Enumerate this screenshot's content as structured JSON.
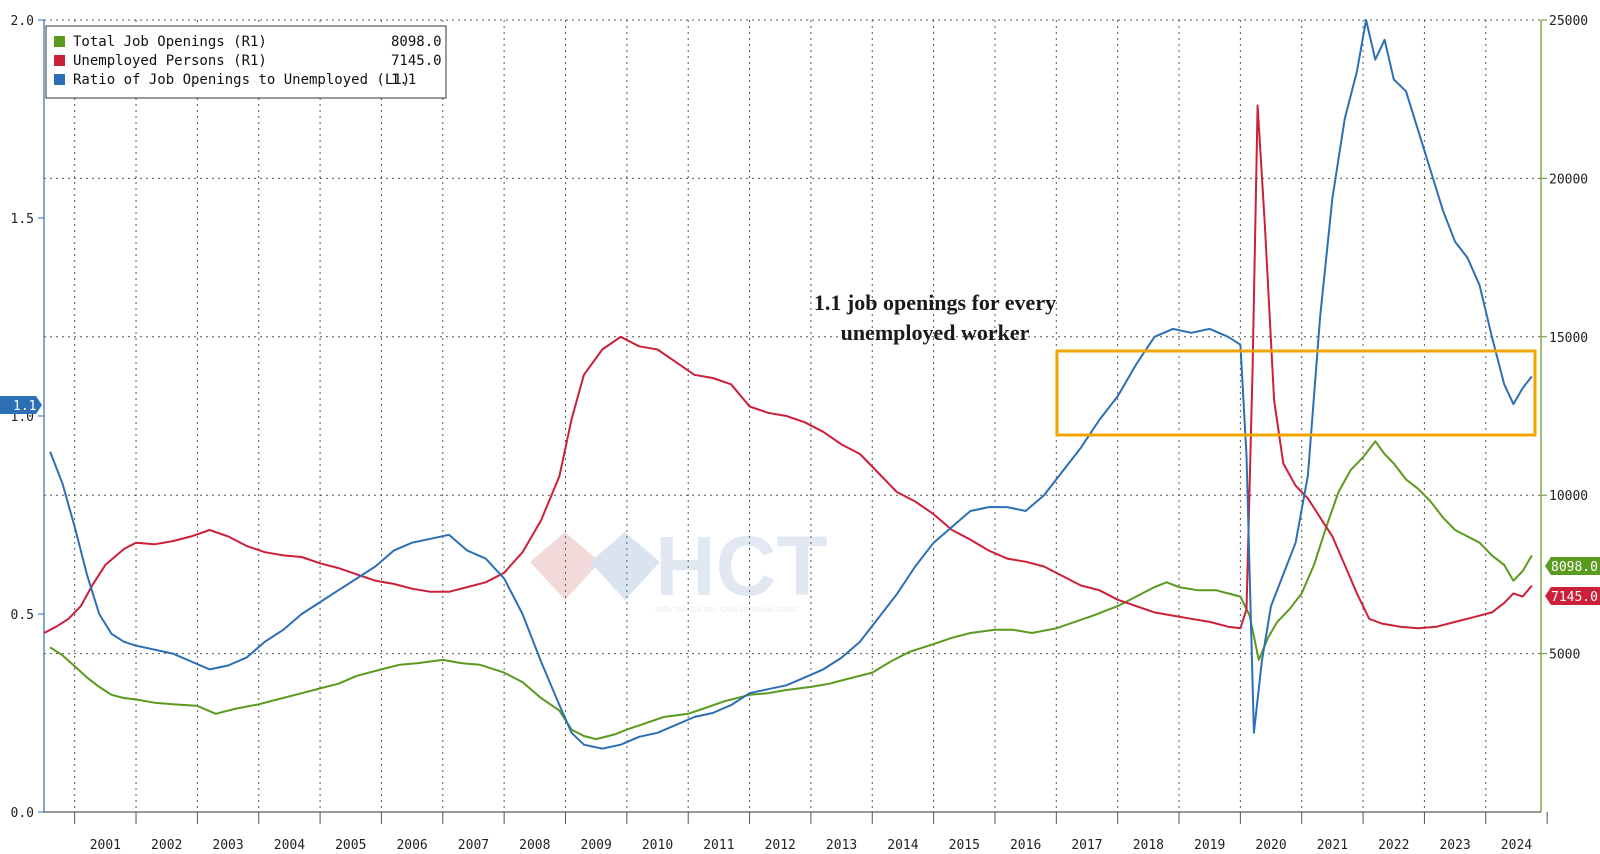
{
  "chart_data": {
    "type": "line",
    "title": "",
    "legend": {
      "position": "top-left",
      "entries": [
        {
          "label": "Total Job Openings (R1)",
          "value": "8098.0",
          "color": "#5a9a1e"
        },
        {
          "label": "Unemployed Persons (R1)",
          "value": "7145.0",
          "color": "#cc1f3a"
        },
        {
          "label": "Ratio of Job Openings to Unemployed (L1)",
          "value": "1.1",
          "color": "#2c6fb5"
        }
      ]
    },
    "left_axis": {
      "range": [
        0.0,
        2.0
      ],
      "ticks": [
        "0.0",
        "0.5",
        "1.0",
        "1.5",
        "2.0"
      ]
    },
    "right_axis": {
      "range": [
        0,
        25000
      ],
      "ticks": [
        "5000",
        "10000",
        "15000",
        "20000",
        "25000"
      ]
    },
    "x_axis": {
      "range": [
        2000.5,
        2024.9
      ],
      "ticks": [
        "2001",
        "2002",
        "2003",
        "2004",
        "2005",
        "2006",
        "2007",
        "2008",
        "2009",
        "2010",
        "2011",
        "2012",
        "2013",
        "2014",
        "2015",
        "2016",
        "2017",
        "2018",
        "2019",
        "2020",
        "2021",
        "2022",
        "2023",
        "2024"
      ]
    },
    "grid": true,
    "last_value_tags": {
      "ratio": "1.1",
      "openings": "8098.0",
      "unemployed": "7145.0"
    },
    "annotation": {
      "lines": [
        "1.1 job openings for every",
        "unemployed worker"
      ],
      "box_color": "#f0a500"
    },
    "series": [
      {
        "name": "Total Job Openings (R1)",
        "axis": "right",
        "color": "#5a9a1e",
        "points": [
          [
            2000.6,
            5200
          ],
          [
            2000.8,
            4950
          ],
          [
            2001.0,
            4600
          ],
          [
            2001.2,
            4250
          ],
          [
            2001.4,
            3950
          ],
          [
            2001.6,
            3700
          ],
          [
            2001.8,
            3600
          ],
          [
            2002.0,
            3550
          ],
          [
            2002.3,
            3450
          ],
          [
            2002.6,
            3400
          ],
          [
            2003.0,
            3350
          ],
          [
            2003.3,
            3100
          ],
          [
            2003.6,
            3250
          ],
          [
            2004.0,
            3400
          ],
          [
            2004.3,
            3550
          ],
          [
            2004.6,
            3700
          ],
          [
            2005.0,
            3900
          ],
          [
            2005.3,
            4050
          ],
          [
            2005.6,
            4300
          ],
          [
            2006.0,
            4500
          ],
          [
            2006.3,
            4650
          ],
          [
            2006.6,
            4700
          ],
          [
            2007.0,
            4800
          ],
          [
            2007.3,
            4700
          ],
          [
            2007.6,
            4650
          ],
          [
            2008.0,
            4400
          ],
          [
            2008.3,
            4100
          ],
          [
            2008.6,
            3600
          ],
          [
            2008.9,
            3200
          ],
          [
            2009.1,
            2600
          ],
          [
            2009.3,
            2400
          ],
          [
            2009.5,
            2300
          ],
          [
            2009.8,
            2450
          ],
          [
            2010.0,
            2600
          ],
          [
            2010.3,
            2800
          ],
          [
            2010.6,
            3000
          ],
          [
            2011.0,
            3100
          ],
          [
            2011.3,
            3300
          ],
          [
            2011.6,
            3500
          ],
          [
            2012.0,
            3700
          ],
          [
            2012.3,
            3750
          ],
          [
            2012.6,
            3850
          ],
          [
            2013.0,
            3950
          ],
          [
            2013.3,
            4050
          ],
          [
            2013.6,
            4200
          ],
          [
            2014.0,
            4400
          ],
          [
            2014.3,
            4750
          ],
          [
            2014.6,
            5050
          ],
          [
            2015.0,
            5300
          ],
          [
            2015.3,
            5500
          ],
          [
            2015.6,
            5650
          ],
          [
            2016.0,
            5750
          ],
          [
            2016.3,
            5750
          ],
          [
            2016.6,
            5650
          ],
          [
            2017.0,
            5800
          ],
          [
            2017.3,
            6000
          ],
          [
            2017.6,
            6200
          ],
          [
            2018.0,
            6500
          ],
          [
            2018.3,
            6800
          ],
          [
            2018.6,
            7100
          ],
          [
            2018.8,
            7250
          ],
          [
            2019.0,
            7100
          ],
          [
            2019.3,
            7000
          ],
          [
            2019.6,
            7000
          ],
          [
            2019.8,
            6900
          ],
          [
            2020.0,
            6800
          ],
          [
            2020.15,
            6200
          ],
          [
            2020.3,
            4800
          ],
          [
            2020.45,
            5500
          ],
          [
            2020.6,
            6000
          ],
          [
            2020.8,
            6400
          ],
          [
            2021.0,
            6900
          ],
          [
            2021.2,
            7800
          ],
          [
            2021.4,
            9000
          ],
          [
            2021.6,
            10100
          ],
          [
            2021.8,
            10800
          ],
          [
            2022.0,
            11200
          ],
          [
            2022.2,
            11700
          ],
          [
            2022.35,
            11300
          ],
          [
            2022.5,
            11000
          ],
          [
            2022.7,
            10500
          ],
          [
            2022.9,
            10200
          ],
          [
            2023.1,
            9800
          ],
          [
            2023.3,
            9300
          ],
          [
            2023.5,
            8900
          ],
          [
            2023.7,
            8700
          ],
          [
            2023.9,
            8500
          ],
          [
            2024.1,
            8100
          ],
          [
            2024.3,
            7800
          ],
          [
            2024.45,
            7300
          ],
          [
            2024.6,
            7600
          ],
          [
            2024.75,
            8098
          ]
        ]
      },
      {
        "name": "Unemployed Persons (R1)",
        "axis": "right",
        "color": "#cc1f3a",
        "points": [
          [
            2000.5,
            5650
          ],
          [
            2000.7,
            5850
          ],
          [
            2000.9,
            6100
          ],
          [
            2001.1,
            6500
          ],
          [
            2001.3,
            7200
          ],
          [
            2001.5,
            7800
          ],
          [
            2001.8,
            8300
          ],
          [
            2002.0,
            8500
          ],
          [
            2002.3,
            8450
          ],
          [
            2002.6,
            8550
          ],
          [
            2002.9,
            8700
          ],
          [
            2003.2,
            8900
          ],
          [
            2003.5,
            8700
          ],
          [
            2003.8,
            8400
          ],
          [
            2004.1,
            8200
          ],
          [
            2004.4,
            8100
          ],
          [
            2004.7,
            8050
          ],
          [
            2005.0,
            7850
          ],
          [
            2005.3,
            7700
          ],
          [
            2005.6,
            7500
          ],
          [
            2005.9,
            7300
          ],
          [
            2006.2,
            7200
          ],
          [
            2006.5,
            7050
          ],
          [
            2006.8,
            6950
          ],
          [
            2007.1,
            6950
          ],
          [
            2007.4,
            7100
          ],
          [
            2007.7,
            7250
          ],
          [
            2008.0,
            7550
          ],
          [
            2008.3,
            8200
          ],
          [
            2008.6,
            9200
          ],
          [
            2008.9,
            10600
          ],
          [
            2009.1,
            12400
          ],
          [
            2009.3,
            13800
          ],
          [
            2009.6,
            14600
          ],
          [
            2009.9,
            15000
          ],
          [
            2010.2,
            14700
          ],
          [
            2010.5,
            14600
          ],
          [
            2010.8,
            14200
          ],
          [
            2011.1,
            13800
          ],
          [
            2011.4,
            13700
          ],
          [
            2011.7,
            13500
          ],
          [
            2012.0,
            12800
          ],
          [
            2012.3,
            12600
          ],
          [
            2012.6,
            12500
          ],
          [
            2012.9,
            12300
          ],
          [
            2013.2,
            12000
          ],
          [
            2013.5,
            11600
          ],
          [
            2013.8,
            11300
          ],
          [
            2014.1,
            10700
          ],
          [
            2014.4,
            10100
          ],
          [
            2014.7,
            9800
          ],
          [
            2015.0,
            9400
          ],
          [
            2015.3,
            8900
          ],
          [
            2015.6,
            8600
          ],
          [
            2015.9,
            8250
          ],
          [
            2016.2,
            8000
          ],
          [
            2016.5,
            7900
          ],
          [
            2016.8,
            7750
          ],
          [
            2017.1,
            7450
          ],
          [
            2017.4,
            7150
          ],
          [
            2017.7,
            7000
          ],
          [
            2018.0,
            6700
          ],
          [
            2018.3,
            6500
          ],
          [
            2018.6,
            6300
          ],
          [
            2018.9,
            6200
          ],
          [
            2019.2,
            6100
          ],
          [
            2019.5,
            6000
          ],
          [
            2019.8,
            5850
          ],
          [
            2020.0,
            5800
          ],
          [
            2020.1,
            6400
          ],
          [
            2020.2,
            14000
          ],
          [
            2020.28,
            22300
          ],
          [
            2020.4,
            18500
          ],
          [
            2020.55,
            13000
          ],
          [
            2020.7,
            11000
          ],
          [
            2020.9,
            10300
          ],
          [
            2021.1,
            9900
          ],
          [
            2021.3,
            9300
          ],
          [
            2021.5,
            8700
          ],
          [
            2021.7,
            7800
          ],
          [
            2021.9,
            6900
          ],
          [
            2022.1,
            6100
          ],
          [
            2022.3,
            5950
          ],
          [
            2022.6,
            5850
          ],
          [
            2022.9,
            5800
          ],
          [
            2023.2,
            5850
          ],
          [
            2023.5,
            6000
          ],
          [
            2023.8,
            6150
          ],
          [
            2024.1,
            6300
          ],
          [
            2024.3,
            6600
          ],
          [
            2024.45,
            6900
          ],
          [
            2024.6,
            6800
          ],
          [
            2024.75,
            7145
          ]
        ]
      },
      {
        "name": "Ratio of Job Openings to Unemployed (L1)",
        "axis": "left",
        "color": "#2c6fb5",
        "points": [
          [
            2000.6,
            0.91
          ],
          [
            2000.8,
            0.83
          ],
          [
            2001.0,
            0.72
          ],
          [
            2001.2,
            0.6
          ],
          [
            2001.4,
            0.5
          ],
          [
            2001.6,
            0.45
          ],
          [
            2001.8,
            0.43
          ],
          [
            2002.0,
            0.42
          ],
          [
            2002.3,
            0.41
          ],
          [
            2002.6,
            0.4
          ],
          [
            2002.9,
            0.38
          ],
          [
            2003.2,
            0.36
          ],
          [
            2003.5,
            0.37
          ],
          [
            2003.8,
            0.39
          ],
          [
            2004.1,
            0.43
          ],
          [
            2004.4,
            0.46
          ],
          [
            2004.7,
            0.5
          ],
          [
            2005.0,
            0.53
          ],
          [
            2005.3,
            0.56
          ],
          [
            2005.6,
            0.59
          ],
          [
            2005.9,
            0.62
          ],
          [
            2006.2,
            0.66
          ],
          [
            2006.5,
            0.68
          ],
          [
            2006.8,
            0.69
          ],
          [
            2007.1,
            0.7
          ],
          [
            2007.4,
            0.66
          ],
          [
            2007.7,
            0.64
          ],
          [
            2008.0,
            0.59
          ],
          [
            2008.3,
            0.5
          ],
          [
            2008.6,
            0.38
          ],
          [
            2008.9,
            0.27
          ],
          [
            2009.1,
            0.2
          ],
          [
            2009.3,
            0.17
          ],
          [
            2009.6,
            0.16
          ],
          [
            2009.9,
            0.17
          ],
          [
            2010.2,
            0.19
          ],
          [
            2010.5,
            0.2
          ],
          [
            2010.8,
            0.22
          ],
          [
            2011.1,
            0.24
          ],
          [
            2011.4,
            0.25
          ],
          [
            2011.7,
            0.27
          ],
          [
            2012.0,
            0.3
          ],
          [
            2012.3,
            0.31
          ],
          [
            2012.6,
            0.32
          ],
          [
            2012.9,
            0.34
          ],
          [
            2013.2,
            0.36
          ],
          [
            2013.5,
            0.39
          ],
          [
            2013.8,
            0.43
          ],
          [
            2014.1,
            0.49
          ],
          [
            2014.4,
            0.55
          ],
          [
            2014.7,
            0.62
          ],
          [
            2015.0,
            0.68
          ],
          [
            2015.3,
            0.72
          ],
          [
            2015.6,
            0.76
          ],
          [
            2015.9,
            0.77
          ],
          [
            2016.2,
            0.77
          ],
          [
            2016.5,
            0.76
          ],
          [
            2016.8,
            0.8
          ],
          [
            2017.1,
            0.86
          ],
          [
            2017.4,
            0.92
          ],
          [
            2017.7,
            0.99
          ],
          [
            2018.0,
            1.05
          ],
          [
            2018.3,
            1.13
          ],
          [
            2018.6,
            1.2
          ],
          [
            2018.9,
            1.22
          ],
          [
            2019.2,
            1.21
          ],
          [
            2019.5,
            1.22
          ],
          [
            2019.8,
            1.2
          ],
          [
            2020.0,
            1.18
          ],
          [
            2020.1,
            0.9
          ],
          [
            2020.22,
            0.2
          ],
          [
            2020.35,
            0.38
          ],
          [
            2020.5,
            0.52
          ],
          [
            2020.7,
            0.6
          ],
          [
            2020.9,
            0.68
          ],
          [
            2021.1,
            0.85
          ],
          [
            2021.3,
            1.25
          ],
          [
            2021.5,
            1.55
          ],
          [
            2021.7,
            1.75
          ],
          [
            2021.9,
            1.87
          ],
          [
            2022.05,
            2.0
          ],
          [
            2022.2,
            1.9
          ],
          [
            2022.35,
            1.95
          ],
          [
            2022.5,
            1.85
          ],
          [
            2022.7,
            1.82
          ],
          [
            2022.9,
            1.72
          ],
          [
            2023.1,
            1.62
          ],
          [
            2023.3,
            1.52
          ],
          [
            2023.5,
            1.44
          ],
          [
            2023.7,
            1.4
          ],
          [
            2023.9,
            1.33
          ],
          [
            2024.1,
            1.2
          ],
          [
            2024.3,
            1.08
          ],
          [
            2024.45,
            1.03
          ],
          [
            2024.6,
            1.07
          ],
          [
            2024.75,
            1.1
          ]
        ]
      }
    ]
  },
  "watermark": {
    "brand": "HCT",
    "tagline": "KIẾN TẠO GIÁ TRỊ - CHIA SẺ THÀNH CÔNG"
  }
}
